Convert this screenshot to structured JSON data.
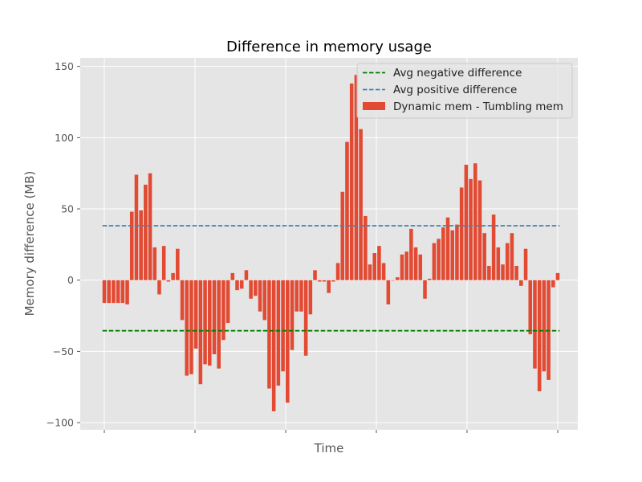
{
  "chart_data": {
    "type": "bar",
    "title": "Difference in memory usage",
    "xlabel": "Time",
    "ylabel": "Memory difference (MB)",
    "ylim": [
      -105,
      156
    ],
    "yticks": [
      -100,
      -50,
      0,
      50,
      100,
      150
    ],
    "ytick_labels": [
      "−100",
      "−50",
      "0",
      "50",
      "100",
      "150"
    ],
    "grid": true,
    "legend_position": "top-right",
    "colors": {
      "bars": "#e24a33",
      "avg_negative": "#008000",
      "avg_positive": "#4682b4",
      "background": "#e5e5e5",
      "grid": "#ffffff"
    },
    "series": [
      {
        "name": "Dynamic mem - Tumbling mem",
        "values": [
          -16,
          -16,
          -16,
          -16,
          -16,
          -17,
          48,
          74,
          49,
          67,
          75,
          23,
          -10,
          24,
          -1,
          5,
          22,
          -28,
          -67,
          -66,
          -48,
          -73,
          -59,
          -60,
          -52,
          -62,
          -42,
          -30,
          5,
          -7,
          -6,
          7,
          -13,
          -11,
          -22,
          -28,
          -76,
          -92,
          -74,
          -64,
          -86,
          -49,
          -22,
          -22,
          -53,
          -24,
          7,
          -1,
          -1,
          -9,
          -1,
          12,
          62,
          97,
          138,
          144,
          106,
          45,
          11,
          19,
          24,
          12,
          -17,
          0,
          2,
          18,
          20,
          36,
          23,
          18,
          -13,
          1,
          26,
          29,
          37,
          44,
          35,
          39,
          65,
          81,
          71,
          82,
          70,
          33,
          10,
          46,
          23,
          11,
          26,
          33,
          10,
          -4,
          22,
          -38,
          -62,
          -78,
          -64,
          -70,
          -5,
          5
        ]
      },
      {
        "name": "Avg negative difference",
        "value": -35.5
      },
      {
        "name": "Avg positive difference",
        "value": 38.2
      }
    ]
  }
}
